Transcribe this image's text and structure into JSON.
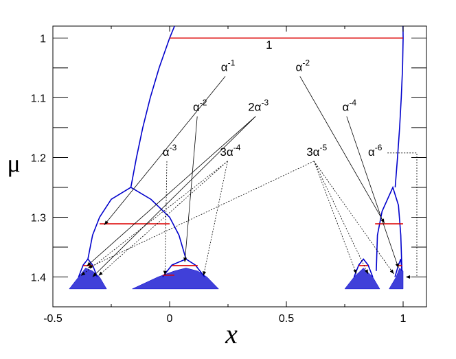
{
  "chart_data": {
    "type": "line",
    "x_label": "x",
    "y_label": "μ",
    "xlim": [
      -0.5,
      1.1
    ],
    "ylim": [
      0.98,
      1.45
    ],
    "y_inverted": true,
    "xticks": [
      -0.5,
      0,
      0.5,
      1
    ],
    "yticks": [
      1,
      1.1,
      1.2,
      1.3,
      1.4
    ],
    "xminorticks": [
      -0.25,
      0.25,
      0.75
    ],
    "yminorticks": [
      1.05,
      1.15,
      1.25,
      1.35
    ],
    "series": [
      {
        "color": "#0000cc",
        "x": [
          0.03,
          0.021,
          0,
          -0.045,
          -0.083,
          -0.115,
          -0.142,
          -0.166
        ],
        "values": [
          0.97,
          0.98,
          1.0,
          1.05,
          1.1,
          1.15,
          1.2,
          1.25
        ]
      },
      {
        "color": "#0000cc",
        "x": [
          0.9995,
          1.0,
          0.9976,
          0.992,
          0.985,
          0.976,
          0.966
        ],
        "values": [
          0.98,
          1.0,
          1.05,
          1.1,
          1.15,
          1.2,
          1.25
        ]
      },
      {
        "color": "#0000cc",
        "x": [
          -0.35,
          -0.33,
          -0.3,
          -0.25,
          -0.166,
          -0.08,
          0,
          0.04,
          0.07
        ],
        "values": [
          1.37,
          1.33,
          1.3,
          1.27,
          1.25,
          1.27,
          1.3,
          1.33,
          1.37
        ]
      },
      {
        "color": "#0000cc",
        "x": [
          0.885,
          0.89,
          0.91,
          0.956,
          0.98,
          0.99,
          0.995
        ],
        "values": [
          1.39,
          1.33,
          1.29,
          1.25,
          1.28,
          1.33,
          1.39
        ]
      },
      {
        "color": "#0000cc",
        "x": [
          -0.39,
          -0.37,
          -0.35,
          -0.33,
          -0.31
        ],
        "values": [
          1.4,
          1.38,
          1.37,
          1.38,
          1.4
        ]
      },
      {
        "color": "#0000cc",
        "x": [
          -0.03,
          0.01,
          0.07,
          0.11,
          0.15
        ],
        "values": [
          1.4,
          1.38,
          1.37,
          1.38,
          1.4
        ]
      },
      {
        "color": "#0000cc",
        "x": [
          0.79,
          0.81,
          0.83,
          0.85,
          0.87
        ],
        "values": [
          1.4,
          1.38,
          1.37,
          1.38,
          1.4
        ]
      },
      {
        "color": "#0000cc",
        "x": [
          0.965,
          0.98,
          0.99,
          0.995
        ],
        "values": [
          1.4,
          1.38,
          1.37,
          1.39
        ]
      },
      {
        "color": "#dd0000",
        "x": [
          0,
          1
        ],
        "values": [
          1,
          1
        ]
      },
      {
        "color": "#dd0000",
        "x": [
          -0.3,
          0
        ],
        "values": [
          1.311,
          1.311
        ]
      },
      {
        "color": "#dd0000",
        "x": [
          0.88,
          1
        ],
        "values": [
          1.311,
          1.311
        ]
      },
      {
        "color": "#dd0000",
        "x": [
          -0.37,
          -0.33
        ],
        "values": [
          1.381,
          1.381
        ]
      },
      {
        "color": "#dd0000",
        "x": [
          0.01,
          0.12
        ],
        "values": [
          1.381,
          1.381
        ]
      },
      {
        "color": "#dd0000",
        "x": [
          0.81,
          0.85
        ],
        "values": [
          1.381,
          1.381
        ]
      },
      {
        "color": "#dd0000",
        "x": [
          0.975,
          0.995
        ],
        "values": [
          1.381,
          1.381
        ]
      },
      {
        "color": "#dd0000",
        "x": [
          -0.03,
          0.02
        ],
        "values": [
          1.397,
          1.397
        ]
      }
    ],
    "bands": [
      {
        "color": "#0000cc",
        "x": [
          -0.43,
          -0.39,
          -0.36,
          -0.33,
          -0.3,
          -0.27
        ],
        "values": [
          1.42,
          1.4,
          1.385,
          1.39,
          1.4,
          1.42
        ]
      },
      {
        "color": "#0000cc",
        "x": [
          -0.16,
          -0.05,
          0.02,
          0.07,
          0.12,
          0.16,
          0.21
        ],
        "values": [
          1.42,
          1.4,
          1.39,
          1.385,
          1.39,
          1.4,
          1.42
        ]
      },
      {
        "color": "#0000cc",
        "x": [
          0.75,
          0.79,
          0.83,
          0.87,
          0.9
        ],
        "values": [
          1.42,
          1.4,
          1.385,
          1.4,
          1.42
        ]
      },
      {
        "color": "#0000cc",
        "x": [
          0.94,
          0.97,
          0.985,
          1.0,
          1.0
        ],
        "values": [
          1.42,
          1.4,
          1.385,
          1.39,
          1.42
        ]
      }
    ],
    "annotations": [
      {
        "text": "1",
        "x": 0.426,
        "y": 1.018
      },
      {
        "text": "α",
        "sup": "-1",
        "x": 0.25,
        "y": 1.055,
        "style": "solid",
        "targets": [
          [
            -0.28,
            1.313
          ]
        ]
      },
      {
        "text": "α",
        "sup": "-2",
        "x": 0.13,
        "y": 1.122,
        "style": "solid",
        "targets": [
          [
            0.065,
            1.375
          ]
        ]
      },
      {
        "text": "2α",
        "sup": "-3",
        "x": 0.38,
        "y": 1.122,
        "style": "solid",
        "targets": [
          [
            -0.355,
            1.382
          ],
          [
            -0.33,
            1.4
          ]
        ]
      },
      {
        "text": "α",
        "sup": "-3",
        "x": 0.0,
        "y": 1.197,
        "style": "dotted",
        "targets": [
          [
            -0.02,
            1.397
          ]
        ]
      },
      {
        "text": "3α",
        "sup": "-4",
        "x": 0.26,
        "y": 1.197,
        "style": "dotted",
        "targets": [
          [
            -0.38,
            1.398
          ],
          [
            -0.305,
            1.398
          ],
          [
            0.145,
            1.398
          ]
        ]
      },
      {
        "text": "3α",
        "sup": "-5",
        "x": 0.63,
        "y": 1.197,
        "style": "dotted",
        "targets": [
          [
            -0.35,
            1.385
          ],
          [
            0.8,
            1.395
          ],
          [
            0.85,
            1.395
          ],
          [
            0.96,
            1.395
          ]
        ]
      },
      {
        "text": "α",
        "sup": "-2",
        "x": 0.57,
        "y": 1.055,
        "style": "solid",
        "targets": [
          [
            0.92,
            1.31
          ]
        ]
      },
      {
        "text": "α",
        "sup": "-4",
        "x": 0.77,
        "y": 1.122,
        "style": "solid",
        "targets": [
          [
            0.98,
            1.385
          ]
        ]
      },
      {
        "text": "α",
        "sup": "-6",
        "x": 0.88,
        "y": 1.197,
        "style": "dotted",
        "connector": "bracket",
        "targets": [
          [
            1.005,
            1.4
          ]
        ]
      }
    ]
  }
}
